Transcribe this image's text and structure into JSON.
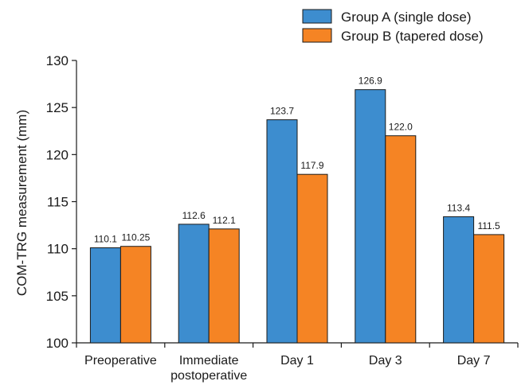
{
  "chart_data": {
    "type": "bar",
    "categories": [
      [
        "Preoperative"
      ],
      [
        "Immediate",
        "postoperative"
      ],
      [
        "Day 1"
      ],
      [
        "Day 3"
      ],
      [
        "Day 7"
      ]
    ],
    "series": [
      {
        "name": "Group A (single dose)",
        "values": [
          110.1,
          112.6,
          123.7,
          126.9,
          113.4
        ],
        "labels": [
          "110.1",
          "112.6",
          "123.7",
          "126.9",
          "113.4"
        ],
        "color": "#3d8dcf"
      },
      {
        "name": "Group B (tapered dose)",
        "values": [
          110.25,
          112.1,
          117.9,
          122.0,
          111.5
        ],
        "labels": [
          "110.25",
          "112.1",
          "117.9",
          "122.0",
          "111.5"
        ],
        "color": "#f58424"
      }
    ],
    "ylabel": "COM-TRG measurement (mm)",
    "xlabel": "",
    "ylim": [
      100,
      130
    ],
    "yticks": [
      100,
      105,
      110,
      115,
      120,
      125,
      130
    ],
    "legend": "top-right",
    "grid": false
  }
}
